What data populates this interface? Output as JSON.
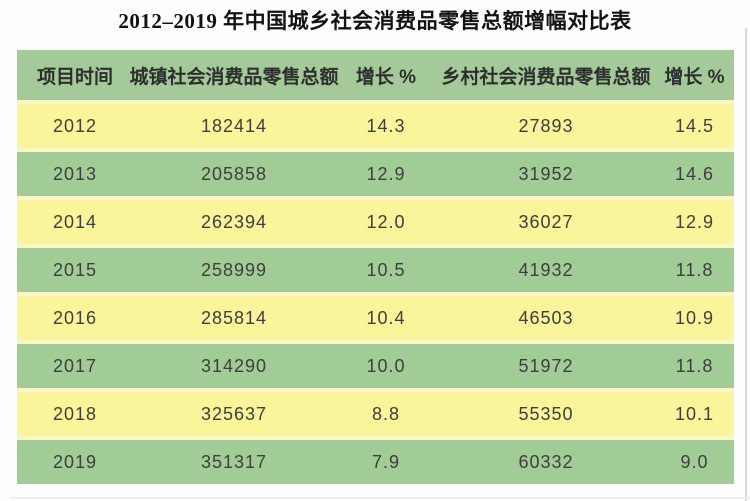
{
  "page": {
    "title": "2012–2019 年中国城乡社会消费品零售总额增幅对比表"
  },
  "colors": {
    "header_green": "#a3ca98",
    "row_green": "#a1cc96",
    "row_yellow": "#faf49a",
    "separator_pale_yellow": "#fbf7c5",
    "text": "#3e3e3e",
    "title_text": "#121212"
  },
  "table": {
    "headers": [
      "项目时间",
      "城镇社会消费品零售总额",
      "增长 %",
      "乡村社会消费品零售总额",
      "增长 %"
    ],
    "rows": [
      [
        "2012",
        "182414",
        "14.3",
        "27893",
        "14.5"
      ],
      [
        "2013",
        "205858",
        "12.9",
        "31952",
        "14.6"
      ],
      [
        "2014",
        "262394",
        "12.0",
        "36027",
        "12.9"
      ],
      [
        "2015",
        "258999",
        "10.5",
        "41932",
        "11.8"
      ],
      [
        "2016",
        "285814",
        "10.4",
        "46503",
        "10.9"
      ],
      [
        "2017",
        "314290",
        "10.0",
        "51972",
        "11.8"
      ],
      [
        "2018",
        "325637",
        "8.8",
        "55350",
        "10.1"
      ],
      [
        "2019",
        "351317",
        "7.9",
        "60332",
        "9.0"
      ]
    ]
  },
  "chart_data": {
    "type": "table",
    "title": "2012–2019 年中国城乡社会消费品零售总额增幅对比表",
    "columns": [
      "项目时间",
      "城镇社会消费品零售总额",
      "增长 %",
      "乡村社会消费品零售总额",
      "增长 %"
    ],
    "rows": [
      [
        2012,
        182414,
        14.3,
        27893,
        14.5
      ],
      [
        2013,
        205858,
        12.9,
        31952,
        14.6
      ],
      [
        2014,
        262394,
        12.0,
        36027,
        12.9
      ],
      [
        2015,
        258999,
        10.5,
        41932,
        11.8
      ],
      [
        2016,
        285814,
        10.4,
        46503,
        10.9
      ],
      [
        2017,
        314290,
        10.0,
        51972,
        11.8
      ],
      [
        2018,
        325637,
        8.8,
        55350,
        10.1
      ],
      [
        2019,
        351317,
        7.9,
        60332,
        9.0
      ]
    ],
    "layout_hints": {
      "header_background": "#a3ca98",
      "row_alternating_backgrounds": [
        "#faf49a",
        "#a1cc96"
      ],
      "all_cells_center_aligned": true
    }
  }
}
